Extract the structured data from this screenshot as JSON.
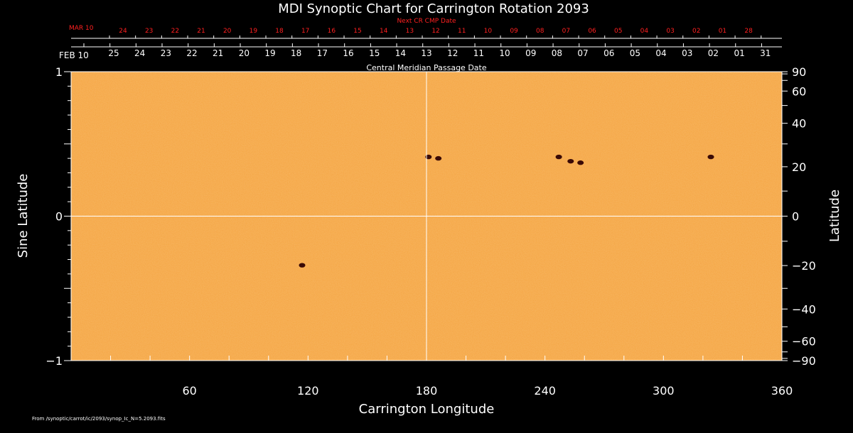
{
  "chart_data": {
    "type": "heatmap",
    "title": "MDI Synoptic Chart for Carrington Rotation 2093",
    "xlabel": "Carrington Longitude",
    "ylabel_left": "Sine Latitude",
    "ylabel_right": "Latitude",
    "xlim": [
      0,
      360
    ],
    "ylim_sine": [
      -1,
      1
    ],
    "x_ticks": [
      60,
      120,
      180,
      240,
      300,
      360
    ],
    "y_left_ticks": [
      {
        "value": 1,
        "label": "1"
      },
      {
        "value": 0,
        "label": "0"
      },
      {
        "value": -1,
        "label": "−1"
      }
    ],
    "y_right_ticks": [
      {
        "lat": 90,
        "label": "90"
      },
      {
        "lat": 60,
        "label": "60"
      },
      {
        "lat": 40,
        "label": "40"
      },
      {
        "lat": 20,
        "label": "20"
      },
      {
        "lat": 0,
        "label": "0"
      },
      {
        "lat": -20,
        "label": "−20"
      },
      {
        "lat": -40,
        "label": "−40"
      },
      {
        "lat": -60,
        "label": "−60"
      },
      {
        "lat": -90,
        "label": "−90"
      }
    ],
    "cmp_axis": {
      "title": "Central Meridian Passage Date",
      "start_label": "FEB 10",
      "dates": [
        "25",
        "24",
        "23",
        "22",
        "21",
        "20",
        "19",
        "18",
        "17",
        "16",
        "15",
        "14",
        "13",
        "12",
        "11",
        "10",
        "09",
        "08",
        "07",
        "06",
        "05",
        "04",
        "03",
        "02",
        "01",
        "31"
      ]
    },
    "next_cr_axis": {
      "title": "Next CR CMP Date",
      "start_label": "MAR 10",
      "dates": [
        "24",
        "23",
        "22",
        "21",
        "20",
        "19",
        "18",
        "17",
        "16",
        "15",
        "14",
        "13",
        "12",
        "11",
        "10",
        "09",
        "08",
        "07",
        "06",
        "05",
        "04",
        "03",
        "02",
        "01",
        "28"
      ]
    },
    "features": [
      {
        "name": "sunspot",
        "lon": 181,
        "sin_lat": 0.41
      },
      {
        "name": "sunspot",
        "lon": 186,
        "sin_lat": 0.4
      },
      {
        "name": "sunspot",
        "lon": 247,
        "sin_lat": 0.41
      },
      {
        "name": "sunspot",
        "lon": 253,
        "sin_lat": 0.38
      },
      {
        "name": "sunspot",
        "lon": 258,
        "sin_lat": 0.37
      },
      {
        "name": "sunspot",
        "lon": 324,
        "sin_lat": 0.41
      },
      {
        "name": "sunspot",
        "lon": 117,
        "sin_lat": -0.34
      }
    ],
    "colors": {
      "background": "#000000",
      "disk": "#f5a94a",
      "spot": "#3a0a06",
      "grid": "#ffffff",
      "date_red": "#ff2020"
    }
  },
  "footer_text": "From /synoptic/carrot/ic/2093/synop_Ic_N=5.2093.fits"
}
